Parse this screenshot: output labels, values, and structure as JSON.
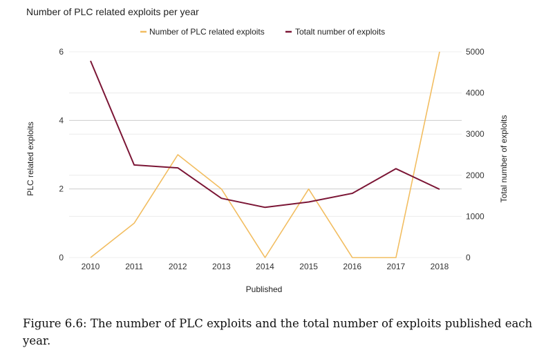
{
  "chart_data": {
    "type": "line",
    "title": "Number of PLC related exploits per year",
    "xlabel": "Published",
    "ylabel_left": "PLC related exploits",
    "ylabel_right": "Total number of exploits",
    "categories": [
      "2010",
      "2011",
      "2012",
      "2013",
      "2014",
      "2015",
      "2016",
      "2017",
      "2018"
    ],
    "series": [
      {
        "name": "Number of PLC related exploits",
        "axis": "left",
        "color": "#f2bd60",
        "values": [
          0,
          1,
          3,
          2,
          0,
          2,
          0,
          0,
          6
        ]
      },
      {
        "name": "Totalt number of exploits",
        "axis": "right",
        "color": "#7b1535",
        "values": [
          4780,
          2250,
          2180,
          1440,
          1220,
          1350,
          1560,
          2160,
          1660
        ]
      }
    ],
    "y_left": {
      "min": 0,
      "max": 6,
      "ticks": [
        0,
        2,
        4,
        6
      ]
    },
    "y_right": {
      "min": 0,
      "max": 5000,
      "ticks": [
        0,
        1000,
        2000,
        3000,
        4000,
        5000
      ]
    },
    "grid": true,
    "legend_position": "top"
  },
  "caption": "Figure 6.6: The number of PLC exploits and the total number of exploits published each year."
}
